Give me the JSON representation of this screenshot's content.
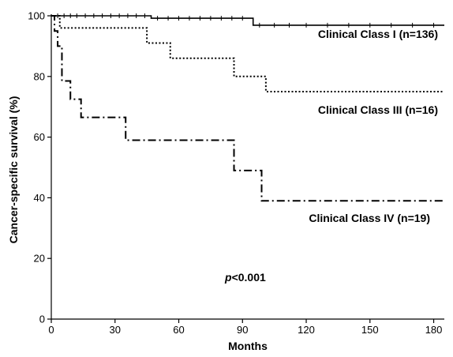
{
  "chart_data": {
    "type": "line",
    "subtype": "kaplan-meier step",
    "xlabel": "Months",
    "ylabel": "Cancer-specific survival (%)",
    "xlim": [
      0,
      185
    ],
    "ylim": [
      0,
      100
    ],
    "xticks": [
      "0",
      "30",
      "60",
      "90",
      "120",
      "150",
      "180"
    ],
    "yticks": [
      "0",
      "20",
      "40",
      "60",
      "80",
      "100"
    ],
    "grid": false,
    "legend": "none",
    "annotation": {
      "italic": "p",
      "rest": "<0.001"
    },
    "series": [
      {
        "name": "Clinical Class I (n=136)",
        "style": "solid",
        "points": [
          [
            0,
            100
          ],
          [
            47,
            100
          ],
          [
            47,
            99.2
          ],
          [
            95,
            99.2
          ],
          [
            95,
            96.9
          ],
          [
            185,
            96.9
          ]
        ],
        "censor_x": [
          3,
          6,
          9,
          12,
          16,
          20,
          24,
          28,
          32,
          36,
          40,
          44,
          50,
          55,
          60,
          65,
          70,
          75,
          80,
          85,
          90,
          98,
          105,
          112,
          120,
          130,
          140,
          150,
          160,
          170,
          180
        ]
      },
      {
        "name": "Clinical Class III (n=16)",
        "style": "dotted",
        "points": [
          [
            0,
            100
          ],
          [
            4,
            100
          ],
          [
            4,
            96
          ],
          [
            45,
            96
          ],
          [
            45,
            91
          ],
          [
            56,
            91
          ],
          [
            56,
            86
          ],
          [
            86,
            86
          ],
          [
            86,
            80
          ],
          [
            101,
            80
          ],
          [
            101,
            75
          ],
          [
            185,
            75
          ]
        ],
        "censor_x": []
      },
      {
        "name": "Clinical Class IV (n=19)",
        "style": "dashdot",
        "points": [
          [
            0,
            100
          ],
          [
            1.5,
            100
          ],
          [
            1.5,
            95
          ],
          [
            3,
            95
          ],
          [
            3,
            90
          ],
          [
            5,
            90
          ],
          [
            5,
            78.5
          ],
          [
            9,
            78.5
          ],
          [
            9,
            72.5
          ],
          [
            14,
            72.5
          ],
          [
            14,
            66.5
          ],
          [
            35,
            66.5
          ],
          [
            35,
            59
          ],
          [
            86,
            59
          ],
          [
            86,
            49
          ],
          [
            99,
            49
          ],
          [
            99,
            39
          ],
          [
            185,
            39
          ]
        ],
        "censor_x": []
      }
    ]
  }
}
